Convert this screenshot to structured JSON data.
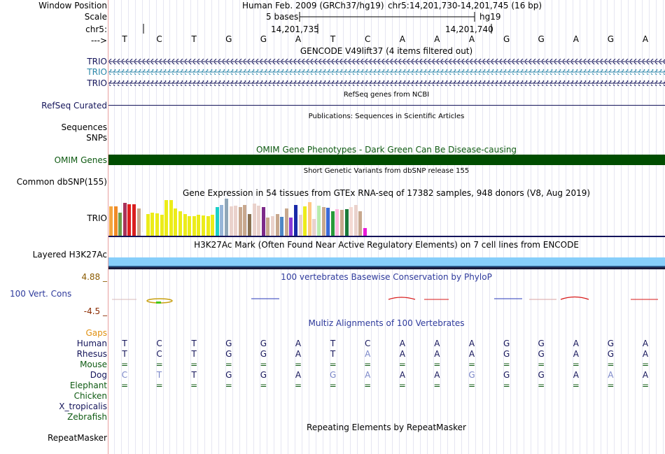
{
  "ruler": {
    "window_position_label": "Window Position",
    "scale_label": "Scale",
    "chrom_label": "chr5:",
    "strand_label": "--->",
    "assembly_text": "Human Feb. 2009 (GRCh37/hg19)",
    "position_text": "chr5:14,201,730-14,201,745 (16 bp)",
    "scale_text": "5 bases",
    "db_text": "hg19",
    "tick1": "14,201,735",
    "tick2": "14,201,740",
    "bases": [
      "T",
      "C",
      "T",
      "G",
      "G",
      "A",
      "T",
      "C",
      "A",
      "A",
      "A",
      "G",
      "G",
      "A",
      "G",
      "A"
    ]
  },
  "tracks": {
    "gencode": {
      "title": "GENCODE V49lift37 (4 items filtered out)",
      "items": [
        "TRIO",
        "TRIO",
        "TRIO"
      ],
      "colors": [
        "#14145a",
        "#2a86a8",
        "#14145a"
      ]
    },
    "refseq": {
      "title": "RefSeq genes from NCBI",
      "label": "RefSeq Curated",
      "color": "#14145a"
    },
    "publications": {
      "title": "Publications: Sequences in Scientific Articles",
      "labels": [
        "Sequences",
        "SNPs"
      ]
    },
    "omim": {
      "title": "OMIM Gene Phenotypes - Dark Green Can Be Disease-causing",
      "label": "OMIM Genes",
      "color": "#004d00"
    },
    "dbsnp": {
      "title": "Short Genetic Variants from dbSNP release 155",
      "label": "Common dbSNP(155)"
    },
    "gtex": {
      "title": "Gene Expression in 54 tissues from GTEx RNA-seq of 17382 samples, 948 donors (V8, Aug 2019)",
      "label": "TRIO",
      "values": [
        0.78,
        0.78,
        0.62,
        0.87,
        0.83,
        0.83,
        0.72,
        0.1,
        0.58,
        0.62,
        0.6,
        0.55,
        0.95,
        0.95,
        0.73,
        0.65,
        0.58,
        0.52,
        0.52,
        0.55,
        0.54,
        0.52,
        0.55,
        0.75,
        0.82,
        0.98,
        0.78,
        0.8,
        0.75,
        0.82,
        0.58,
        0.85,
        0.8,
        0.76,
        0.49,
        0.52,
        0.58,
        0.5,
        0.72,
        0.48,
        0.82,
        0.55,
        0.78,
        0.88,
        0.45,
        0.8,
        0.76,
        0.74,
        0.65,
        0.7,
        0.68,
        0.7,
        0.75,
        0.82,
        0.64,
        0.2
      ],
      "colors": [
        "#f4a640",
        "#f08b26",
        "#6e9e4a",
        "#a8325a",
        "#e01f1f",
        "#d91f1f",
        "#c8a88e",
        "#fff",
        "#ecec1a",
        "#ecec1a",
        "#ecec1a",
        "#ecec1a",
        "#ecec1a",
        "#ecec1a",
        "#ecec1a",
        "#ecec1a",
        "#ecec1a",
        "#ecec1a",
        "#ecec1a",
        "#ecec1a",
        "#ecec1a",
        "#ecec1a",
        "#ecec1a",
        "#1ad0c8",
        "#97b5d8",
        "#8fa6b8",
        "#ead2cc",
        "#ead2cc",
        "#c8a88e",
        "#c8a88e",
        "#8a7252",
        "#ead2cc",
        "#ead2cc",
        "#7c2a8a",
        "#c8a88e",
        "#ead2cc",
        "#c8a88e",
        "#4e86c4",
        "#c8a88e",
        "#8a3ad8",
        "#1a2aa8",
        "#ead2cc",
        "#ecec1a",
        "#ffc884",
        "#ead2cc",
        "#b8ecae",
        "#c8a88e",
        "#3a6ad8",
        "#2a9a3a",
        "#ffbae0",
        "#c8a88e",
        "#1a7a3a",
        "#f4dad4",
        "#ead2cc",
        "#c8a88e",
        "#ea1ad8"
      ]
    },
    "h3k27ac": {
      "title": "H3K27Ac Mark (Often Found Near Active Regulatory Elements) on 7 cell lines from ENCODE",
      "label": "Layered H3K27Ac",
      "color": "#87cefa"
    },
    "phylop": {
      "title": "100 vertebrates Basewise Conservation by PhyloP",
      "label": "100 Vert. Cons",
      "max": "4.88 _",
      "min": "-4.5 _"
    },
    "multiz": {
      "title": "Multiz Alignments of 100 Vertebrates",
      "gaps_label": "Gaps",
      "species": [
        {
          "name": "Human",
          "seq": [
            "T",
            "C",
            "T",
            "G",
            "G",
            "A",
            "T",
            "C",
            "A",
            "A",
            "A",
            "G",
            "G",
            "A",
            "G",
            "A"
          ]
        },
        {
          "name": "Rhesus",
          "seq": [
            "T",
            "C",
            "T",
            "G",
            "G",
            "A",
            "T",
            "A",
            "A",
            "A",
            "A",
            "G",
            "G",
            "A",
            "G",
            "A"
          ]
        },
        {
          "name": "Mouse",
          "seq": [
            "=",
            "=",
            "=",
            "=",
            "=",
            "=",
            "=",
            "=",
            "=",
            "=",
            "=",
            "=",
            "=",
            "=",
            "=",
            "="
          ]
        },
        {
          "name": "Dog",
          "seq": [
            "C",
            "T",
            "T",
            "G",
            "G",
            "A",
            "G",
            "A",
            "A",
            "A",
            "G",
            "G",
            "G",
            "A",
            "A",
            "A"
          ]
        },
        {
          "name": "Elephant",
          "seq": [
            "=",
            "=",
            "=",
            "=",
            "=",
            "=",
            "=",
            "=",
            "=",
            "=",
            "=",
            "=",
            "=",
            "=",
            "=",
            "="
          ]
        },
        {
          "name": "Chicken",
          "seq": []
        },
        {
          "name": "X_tropicalis",
          "seq": []
        },
        {
          "name": "Zebrafish",
          "seq": []
        }
      ]
    },
    "repeatmasker": {
      "title": "Repeating Elements by RepeatMasker",
      "label": "RepeatMasker"
    }
  },
  "colors": {
    "navy": "#14145a",
    "teal": "#2a86a8",
    "green": "#0e5a12",
    "gaps_orange": "#e09010",
    "phylop_max": "#8a5a00",
    "phylop_min": "#8a2a00",
    "grid": "#e6e6f2"
  }
}
